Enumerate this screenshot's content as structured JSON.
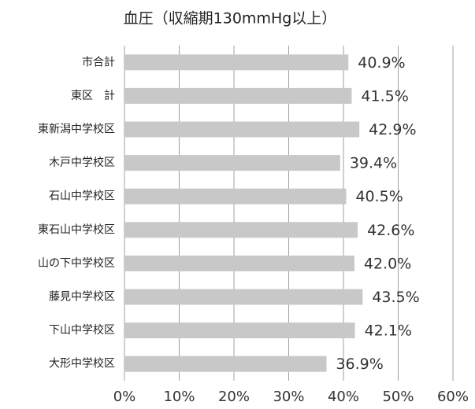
{
  "chart_data": {
    "type": "bar",
    "title": "血圧（収縮期130mmHg以上）",
    "categories": [
      "市合計",
      "東区　計",
      "東新潟中学校区",
      "木戸中学校区",
      "石山中学校区",
      "東石山中学校区",
      "山の下中学校区",
      "藤見中学校区",
      "下山中学校区",
      "大形中学校区"
    ],
    "values": [
      40.9,
      41.5,
      42.9,
      39.4,
      40.5,
      42.6,
      42.0,
      43.5,
      42.1,
      36.9
    ],
    "value_labels": [
      "40.9%",
      "41.5%",
      "42.9%",
      "39.4%",
      "40.5%",
      "42.6%",
      "42.0%",
      "43.5%",
      "42.1%",
      "36.9%"
    ],
    "color": "#c8c8c8",
    "xlim": [
      0,
      60
    ],
    "xticks": [
      {
        "value": 0,
        "label": "0%"
      },
      {
        "value": 10,
        "label": "10%"
      },
      {
        "value": 20,
        "label": "20%"
      },
      {
        "value": 30,
        "label": "30%"
      },
      {
        "value": 40,
        "label": "40%"
      },
      {
        "value": 50,
        "label": "50%"
      },
      {
        "value": 60,
        "label": "60%"
      }
    ],
    "grid": true
  }
}
